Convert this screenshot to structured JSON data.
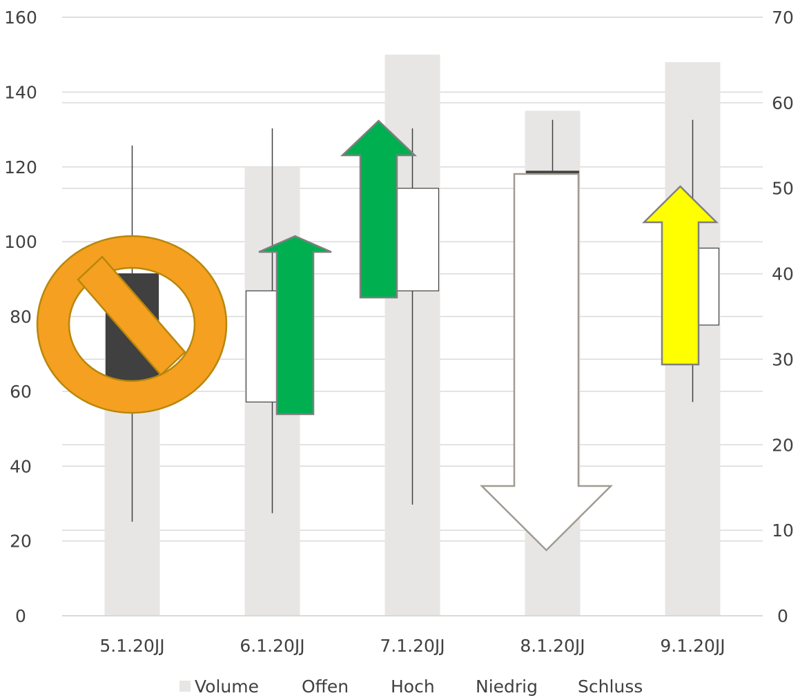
{
  "chart_data": {
    "type": "bar",
    "subtype": "volume-open-high-low-close stock chart with annotation arrows",
    "categories": [
      "5.1.20JJ",
      "6.1.20JJ",
      "7.1.20JJ",
      "8.1.20JJ",
      "9.1.20JJ"
    ],
    "primary_axis": {
      "ylim": [
        0,
        160
      ],
      "ticks": [
        "0",
        "20",
        "40",
        "60",
        "80",
        "100",
        "120",
        "140",
        "160"
      ]
    },
    "secondary_axis": {
      "ylim": [
        0,
        70
      ],
      "ticks": [
        "0",
        "10",
        "20",
        "30",
        "40",
        "50",
        "60",
        "70"
      ]
    },
    "series": [
      {
        "name": "Volume",
        "axis": "primary",
        "values": [
          80,
          120,
          150,
          135,
          148
        ]
      },
      {
        "name": "Offen",
        "axis": "secondary",
        "values": [
          40,
          25,
          38,
          52,
          34
        ]
      },
      {
        "name": "Hoch",
        "axis": "secondary",
        "values": [
          55,
          57,
          57,
          58,
          58
        ]
      },
      {
        "name": "Niedrig",
        "axis": "secondary",
        "values": [
          11,
          12,
          13,
          35,
          25
        ]
      },
      {
        "name": "Schluss",
        "axis": "secondary",
        "values": [
          25,
          38,
          50,
          50,
          43
        ]
      }
    ],
    "grid": true,
    "legend_position": "bottom",
    "colors": {
      "volume": "#e8e6e4",
      "candle_up": "#ffffff",
      "candle_down": "#404040",
      "wick": "#404040",
      "gridline": "#d9d9d9",
      "arrow_green": "#00b050",
      "arrow_green_outline": "#7f7f7f",
      "arrow_yellow": "#ffff00",
      "arrow_white": "#ffffff",
      "arrow_white_outline": "#a09a92",
      "no_symbol": "#f5a020",
      "no_symbol_outline": "#b8860b"
    },
    "annotations": [
      {
        "category": "5.1.20JJ",
        "shape": "no-symbol"
      },
      {
        "category": "6.1.20JJ",
        "shape": "arrow-up",
        "color": "green"
      },
      {
        "category": "7.1.20JJ",
        "shape": "arrow-up",
        "color": "green"
      },
      {
        "category": "8.1.20JJ",
        "shape": "arrow-down",
        "color": "white"
      },
      {
        "category": "9.1.20JJ",
        "shape": "arrow-up",
        "color": "yellow"
      }
    ]
  }
}
